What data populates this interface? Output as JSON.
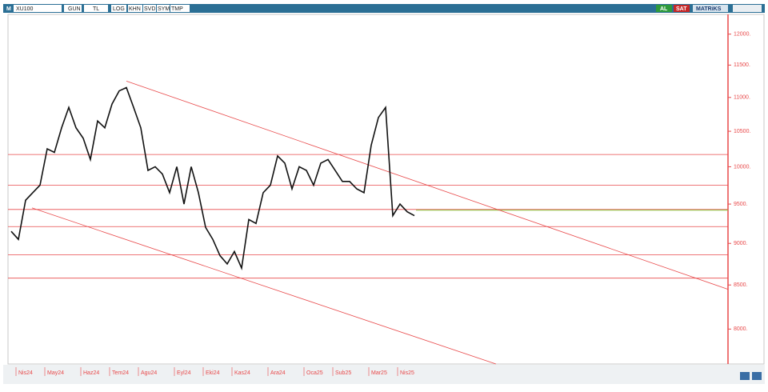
{
  "toolbar": {
    "mode": "M",
    "symbol": "XU100",
    "buttons": [
      "GUN",
      "TL",
      "LOG",
      "KHN",
      "SVD",
      "SYM",
      "TMP"
    ],
    "buy": "AL",
    "sell": "SAT",
    "brand": "MATRiKS"
  },
  "chart_data": {
    "type": "line",
    "color": "#111111",
    "log_scale": true,
    "categories": [
      null,
      "Nis24",
      null,
      null,
      null,
      "May24",
      null,
      null,
      null,
      null,
      "Haz24",
      null,
      null,
      null,
      "Tem24",
      null,
      null,
      null,
      "Agu24",
      null,
      null,
      null,
      null,
      "Eyl24",
      null,
      null,
      null,
      "Eki24",
      null,
      null,
      null,
      "Kas24",
      null,
      null,
      null,
      null,
      "Ara24",
      null,
      null,
      null,
      null,
      "Oca25",
      null,
      null,
      null,
      "Sub25",
      null,
      null,
      null,
      null,
      "Mar25",
      null,
      null,
      null,
      "Nis25",
      null,
      null
    ],
    "values": [
      9150,
      9050,
      9550,
      9650,
      9750,
      10250,
      10200,
      10550,
      10850,
      10550,
      10400,
      10100,
      10650,
      10550,
      10900,
      11100,
      11150,
      10850,
      10550,
      9950,
      10000,
      9900,
      9650,
      10000,
      9500,
      10000,
      9650,
      9200,
      9050,
      8850,
      8750,
      8900,
      8700,
      9300,
      9250,
      9650,
      9750,
      10150,
      10050,
      9700,
      10000,
      9950,
      9750,
      10050,
      10100,
      9950,
      9800,
      9800,
      9700,
      9650,
      10300,
      10700,
      10850,
      9350,
      9500,
      9400,
      9350
    ],
    "ylim": [
      7625,
      12330
    ],
    "yticks": [
      {
        "value": 8000,
        "label": "8000."
      },
      {
        "value": 8500,
        "label": "8500."
      },
      {
        "value": 9000,
        "label": "9000."
      },
      {
        "value": 9500,
        "label": "9500."
      },
      {
        "value": 10000,
        "label": "10000."
      },
      {
        "value": 10500,
        "label": "10500."
      },
      {
        "value": 11000,
        "label": "11000."
      },
      {
        "value": 11500,
        "label": "11500."
      },
      {
        "value": 12000,
        "label": "12000."
      }
    ],
    "hlines": [
      10170,
      9750,
      9430,
      9210,
      8860,
      8580
    ],
    "hline_color": "#e8494a",
    "price_line": 9420,
    "price_line_color": "#8dc63f",
    "trendlines": [
      {
        "start": 11250,
        "end": 8450
      },
      {
        "start": 9450,
        "end": 7625
      }
    ],
    "axis_color": "#e8494a"
  }
}
